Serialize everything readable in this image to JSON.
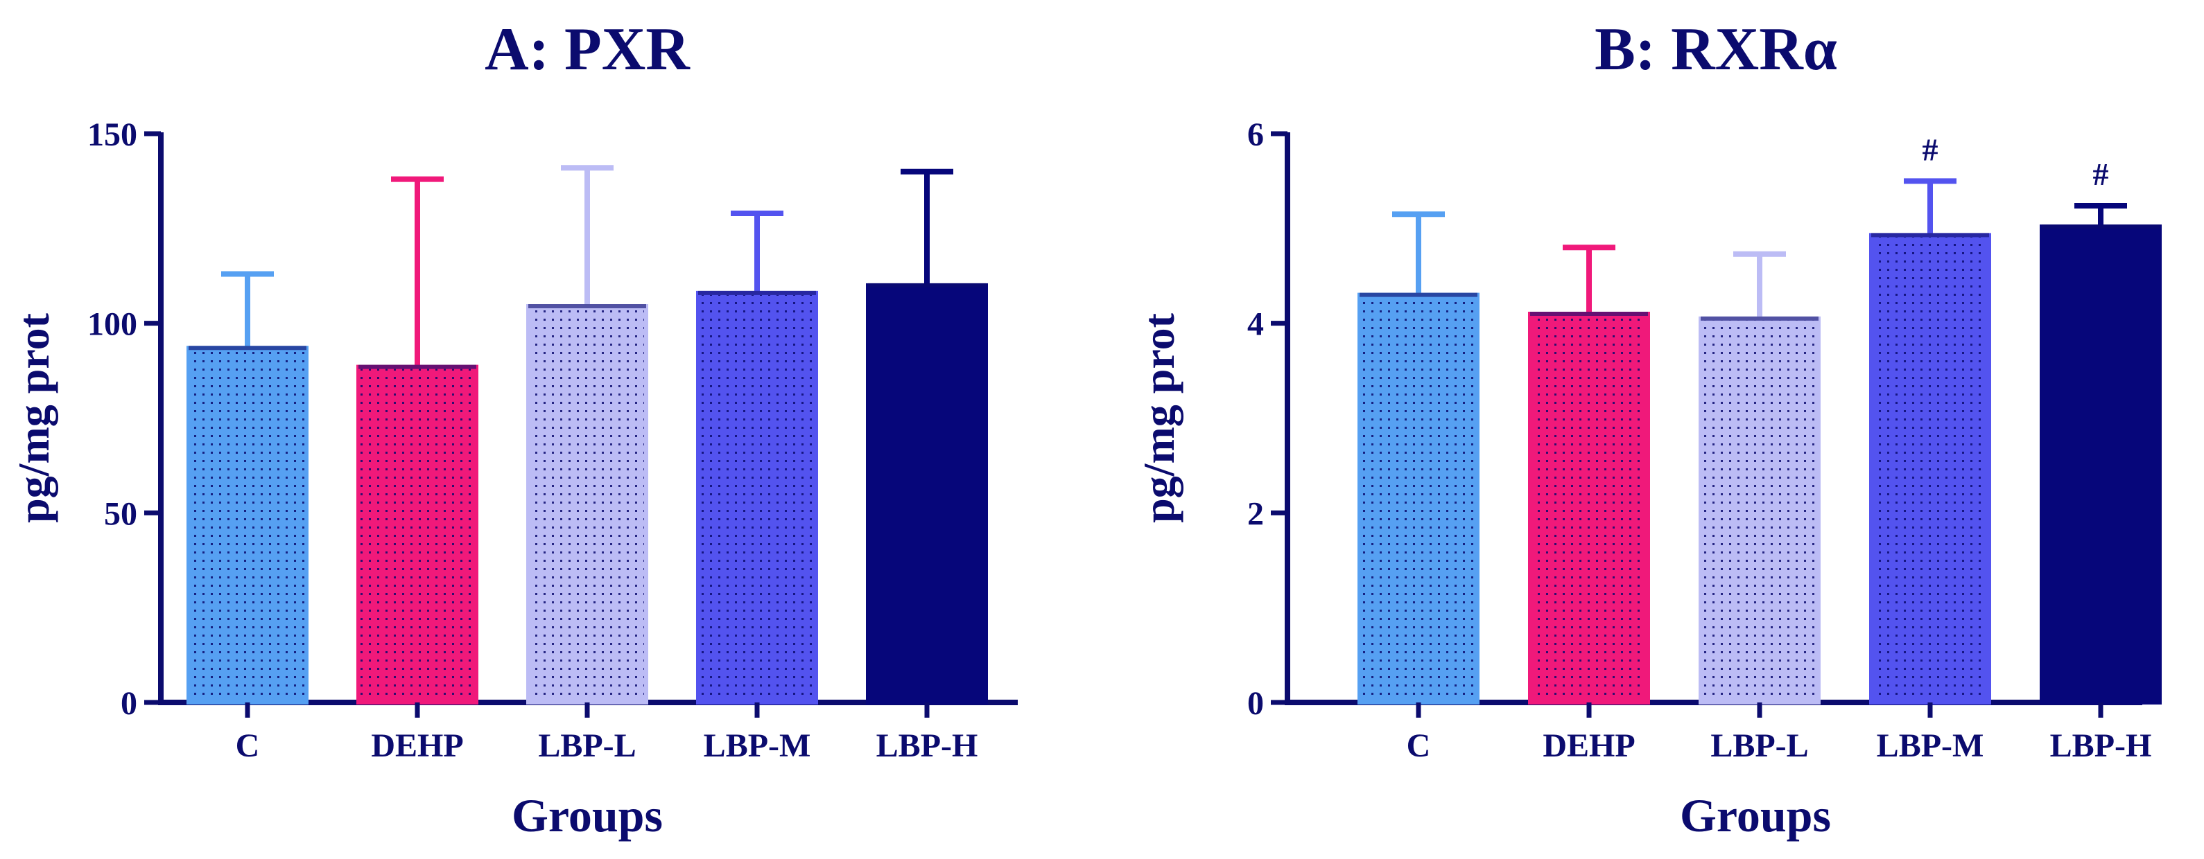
{
  "colors": {
    "axis": "#0b0b6e",
    "C": "#56a0f2",
    "DEHP": "#f0197a",
    "LBP-L": "#bcbcf5",
    "LBP-M": "#5353ef",
    "LBP-H": "#06067a",
    "dot": "#0b0b6e"
  },
  "chart_data": [
    {
      "type": "bar",
      "title": "A: PXR",
      "xlabel": "Groups",
      "ylabel": "pg/mg prot",
      "ylim": [
        0,
        150
      ],
      "yticks": [
        "0",
        "50",
        "100",
        "150"
      ],
      "categories": [
        "C",
        "DEHP",
        "LBP-L",
        "LBP-M",
        "LBP-H"
      ],
      "values": [
        93.5,
        88.5,
        104.5,
        108,
        110
      ],
      "errors": [
        19.5,
        49.5,
        36.5,
        21,
        30
      ],
      "annotations": [
        "",
        "",
        "",
        "",
        ""
      ],
      "grid": false
    },
    {
      "type": "bar",
      "title": "B: RXRα",
      "xlabel": "Groups",
      "ylabel": "pg/mg prot",
      "ylim": [
        0,
        6
      ],
      "yticks": [
        "0",
        "2",
        "4",
        "6"
      ],
      "categories": [
        "C",
        "DEHP",
        "LBP-L",
        "LBP-M",
        "LBP-H"
      ],
      "values": [
        4.3,
        4.1,
        4.05,
        4.93,
        5.02
      ],
      "errors": [
        0.85,
        0.7,
        0.68,
        0.57,
        0.22
      ],
      "annotations": [
        "",
        "",
        "",
        "#",
        "#"
      ],
      "grid": false
    }
  ]
}
